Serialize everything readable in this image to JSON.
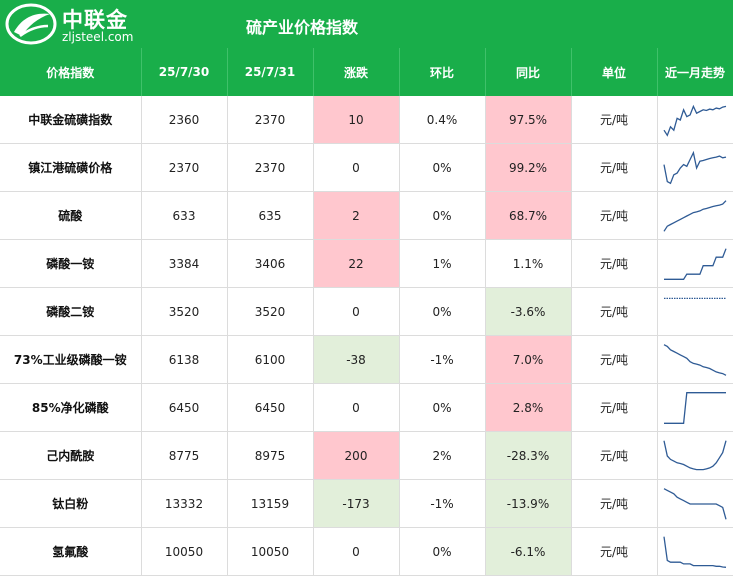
{
  "brand": {
    "name": "中联金",
    "site": "zljsteel.com"
  },
  "title": "硫产业价格指数",
  "colors": {
    "header_green": "#19ae4a",
    "up_fill": "#ffc7ce",
    "down_fill": "#e2efda",
    "spark_line": "#2f5b95"
  },
  "headers": [
    "价格指数",
    "25/7/30",
    "25/7/31",
    "涨跌",
    "环比",
    "同比",
    "单位",
    "近一月走势"
  ],
  "rows": [
    {
      "name": "中联金硫磺指数",
      "d1": "2360",
      "d2": "2370",
      "change": "10",
      "mom": "0.4%",
      "yoy": "97.5%",
      "unit": "元/吨",
      "change_dir": "up",
      "mom_dir": "none",
      "yoy_dir": "up",
      "trend": [
        0.2,
        0.05,
        0.3,
        0.2,
        0.55,
        0.5,
        0.8,
        0.6,
        0.65,
        0.9,
        0.7,
        0.75,
        0.8,
        0.78,
        0.82,
        0.8,
        0.85,
        0.83,
        0.88,
        0.9
      ]
    },
    {
      "name": "镇江港硫磺价格",
      "d1": "2370",
      "d2": "2370",
      "change": "0",
      "mom": "0%",
      "yoy": "99.2%",
      "unit": "元/吨",
      "change_dir": "none",
      "mom_dir": "none",
      "yoy_dir": "up",
      "trend": [
        0.6,
        0.1,
        0.05,
        0.3,
        0.35,
        0.5,
        0.6,
        0.55,
        0.75,
        0.95,
        0.5,
        0.7,
        0.72,
        0.75,
        0.78,
        0.8,
        0.82,
        0.85,
        0.8,
        0.82
      ]
    },
    {
      "name": "硫酸",
      "d1": "633",
      "d2": "635",
      "change": "2",
      "mom": "0%",
      "yoy": "68.7%",
      "unit": "元/吨",
      "change_dir": "up",
      "mom_dir": "none",
      "yoy_dir": "up",
      "trend": [
        0.05,
        0.2,
        0.25,
        0.3,
        0.35,
        0.4,
        0.45,
        0.5,
        0.55,
        0.6,
        0.62,
        0.65,
        0.7,
        0.72,
        0.75,
        0.78,
        0.8,
        0.82,
        0.85,
        0.95
      ]
    },
    {
      "name": "磷酸一铵",
      "d1": "3384",
      "d2": "3406",
      "change": "22",
      "mom": "1%",
      "yoy": "1.1%",
      "unit": "元/吨",
      "change_dir": "up",
      "mom_dir": "none",
      "yoy_dir": "none",
      "trend": [
        0.05,
        0.05,
        0.05,
        0.05,
        0.05,
        0.05,
        0.05,
        0.2,
        0.2,
        0.2,
        0.2,
        0.2,
        0.45,
        0.45,
        0.45,
        0.45,
        0.7,
        0.7,
        0.7,
        0.95
      ]
    },
    {
      "name": "磷酸二铵",
      "d1": "3520",
      "d2": "3520",
      "change": "0",
      "mom": "0%",
      "yoy": "-3.6%",
      "unit": "元/吨",
      "change_dir": "none",
      "mom_dir": "none",
      "yoy_dir": "down",
      "trend": [
        0.9,
        0.9,
        0.9,
        0.9,
        0.9,
        0.9,
        0.9,
        0.9,
        0.9,
        0.9,
        0.9,
        0.9,
        0.9,
        0.9,
        0.9,
        0.9,
        0.9,
        0.9,
        0.9,
        0.9
      ]
    },
    {
      "name": "73%工业级磷酸一铵",
      "d1": "6138",
      "d2": "6100",
      "change": "-38",
      "mom": "-1%",
      "yoy": "7.0%",
      "unit": "元/吨",
      "change_dir": "down",
      "mom_dir": "none",
      "yoy_dir": "up",
      "trend": [
        0.95,
        0.9,
        0.8,
        0.75,
        0.7,
        0.65,
        0.6,
        0.55,
        0.45,
        0.4,
        0.38,
        0.35,
        0.3,
        0.28,
        0.25,
        0.2,
        0.15,
        0.12,
        0.1,
        0.05
      ]
    },
    {
      "name": "85%净化磷酸",
      "d1": "6450",
      "d2": "6450",
      "change": "0",
      "mom": "0%",
      "yoy": "2.8%",
      "unit": "元/吨",
      "change_dir": "none",
      "mom_dir": "none",
      "yoy_dir": "up",
      "trend": [
        0.05,
        0.05,
        0.05,
        0.05,
        0.05,
        0.05,
        0.05,
        0.95,
        0.95,
        0.95,
        0.95,
        0.95,
        0.95,
        0.95,
        0.95,
        0.95,
        0.95,
        0.95,
        0.95,
        0.95
      ]
    },
    {
      "name": "己内酰胺",
      "d1": "8775",
      "d2": "8975",
      "change": "200",
      "mom": "2%",
      "yoy": "-28.3%",
      "unit": "元/吨",
      "change_dir": "up",
      "mom_dir": "none",
      "yoy_dir": "down",
      "trend": [
        0.95,
        0.5,
        0.4,
        0.35,
        0.3,
        0.28,
        0.25,
        0.2,
        0.15,
        0.12,
        0.1,
        0.1,
        0.1,
        0.12,
        0.15,
        0.2,
        0.3,
        0.45,
        0.6,
        0.95
      ]
    },
    {
      "name": "钛白粉",
      "d1": "13332",
      "d2": "13159",
      "change": "-173",
      "mom": "-1%",
      "yoy": "-13.9%",
      "unit": "元/吨",
      "change_dir": "down",
      "mom_dir": "none",
      "yoy_dir": "down",
      "trend": [
        0.95,
        0.9,
        0.85,
        0.8,
        0.7,
        0.65,
        0.6,
        0.55,
        0.5,
        0.5,
        0.5,
        0.5,
        0.5,
        0.5,
        0.5,
        0.5,
        0.5,
        0.45,
        0.4,
        0.05
      ]
    },
    {
      "name": "氢氟酸",
      "d1": "10050",
      "d2": "10050",
      "change": "0",
      "mom": "0%",
      "yoy": "-6.1%",
      "unit": "元/吨",
      "change_dir": "none",
      "mom_dir": "none",
      "yoy_dir": "down",
      "trend": [
        0.95,
        0.25,
        0.2,
        0.2,
        0.2,
        0.2,
        0.15,
        0.15,
        0.15,
        0.1,
        0.1,
        0.1,
        0.1,
        0.1,
        0.1,
        0.1,
        0.08,
        0.08,
        0.06,
        0.05
      ]
    }
  ]
}
